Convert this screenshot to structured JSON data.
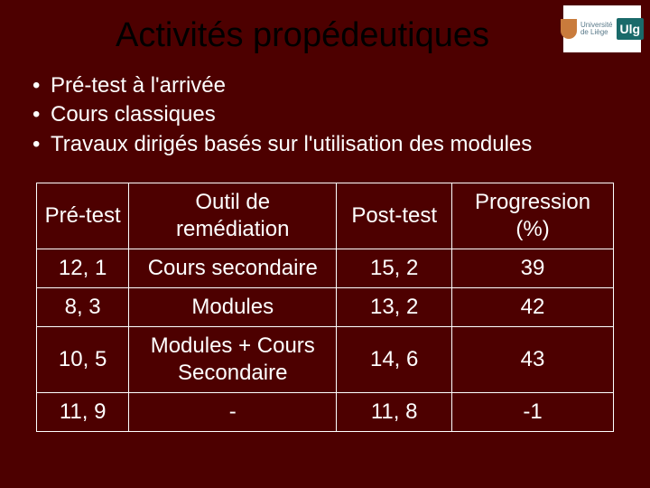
{
  "title": "Activités propédeutiques",
  "logo": {
    "line1": "Université",
    "line2": "de Liège",
    "tag": "Ulg"
  },
  "bullets": [
    "Pré-test à l'arrivée",
    "Cours classiques",
    "Travaux dirigés basés sur l'utilisation des modules"
  ],
  "table": {
    "headers": {
      "c1": "Pré-test",
      "c2_line1": "Outil de",
      "c2_line2": "remédiation",
      "c3": "Post-test",
      "c4_line1": "Progression",
      "c4_line2": "(%)"
    },
    "rows": [
      {
        "pre": "12, 1",
        "outil1": "Cours secondaire",
        "outil2": "",
        "post": "15, 2",
        "prog": "39"
      },
      {
        "pre": "8, 3",
        "outil1": "Modules",
        "outil2": "",
        "post": "13, 2",
        "prog": "42"
      },
      {
        "pre": "10, 5",
        "outil1": "Modules + Cours",
        "outil2": "Secondaire",
        "post": "14, 6",
        "prog": "43"
      },
      {
        "pre": "11, 9",
        "outil1": "-",
        "outil2": "",
        "post": "11, 8",
        "prog": "-1"
      }
    ]
  },
  "styles": {
    "background": "#4d0000",
    "text_color": "#ffffff",
    "title_color": "#000000",
    "border_color": "#ffffff",
    "title_fontsize": 38,
    "body_fontsize": 24
  }
}
